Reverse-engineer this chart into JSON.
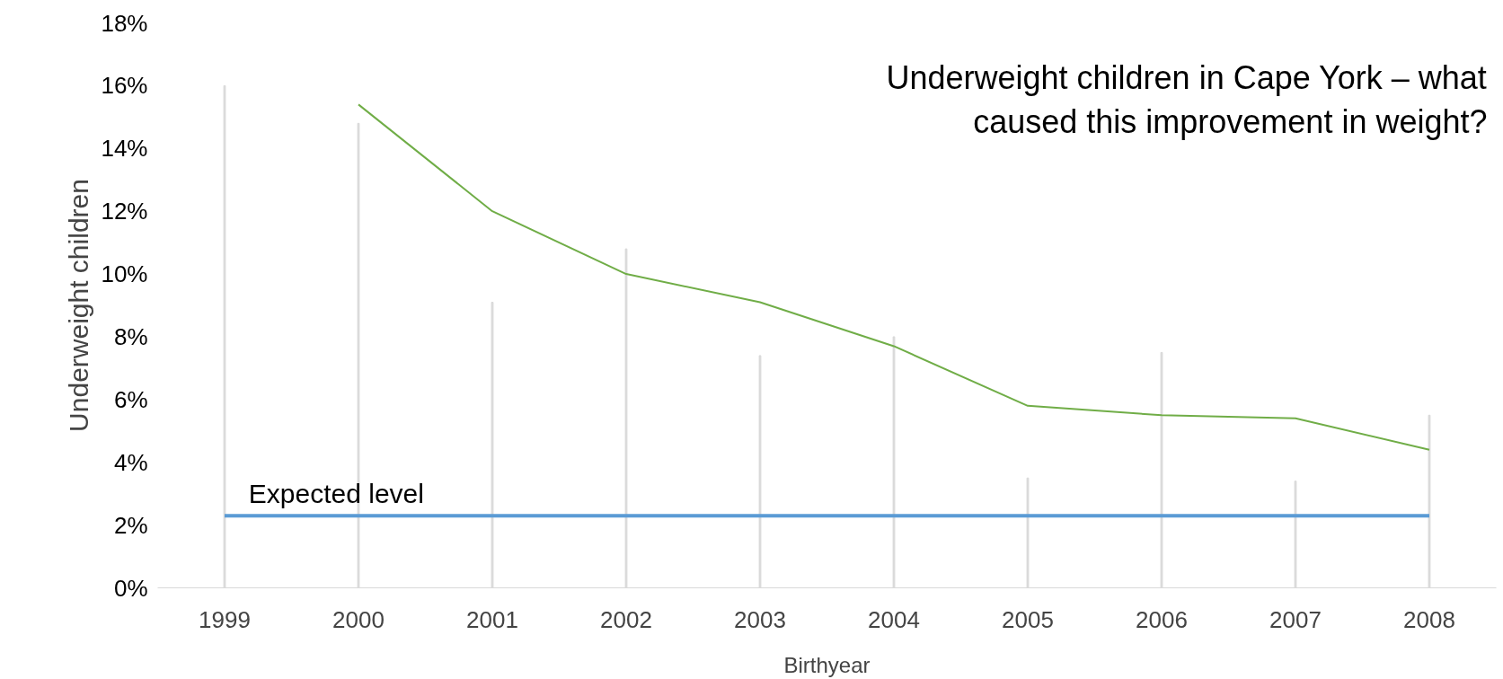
{
  "chart_data": {
    "type": "line",
    "title": "Underweight children in Cape York – what caused this improvement in weight?",
    "xlabel": "Birthyear",
    "ylabel": "Underweight children",
    "categories": [
      "1999",
      "2000",
      "2001",
      "2002",
      "2003",
      "2004",
      "2005",
      "2006",
      "2007",
      "2008"
    ],
    "series": [
      {
        "type": "bar",
        "color": "#d9d9d9",
        "values": [
          16.0,
          14.8,
          9.1,
          10.8,
          7.4,
          8.0,
          3.5,
          7.5,
          3.4,
          5.5
        ]
      },
      {
        "color": "#70ad47",
        "values": [
          null,
          15.4,
          12.0,
          10.0,
          9.1,
          7.7,
          5.8,
          5.5,
          5.4,
          4.4
        ]
      }
    ],
    "ref_lines": [
      {
        "axis": "y",
        "value": 2.3,
        "label": "Expected level",
        "color": "#5b9bd5"
      }
    ],
    "ylim": [
      0,
      18
    ],
    "yticks": [
      {
        "value": 0,
        "label": "0%"
      },
      {
        "value": 2,
        "label": "2%"
      },
      {
        "value": 4,
        "label": "4%"
      },
      {
        "value": 6,
        "label": "6%"
      },
      {
        "value": 8,
        "label": "8%"
      },
      {
        "value": 10,
        "label": "10%"
      },
      {
        "value": 12,
        "label": "12%"
      },
      {
        "value": 14,
        "label": "14%"
      },
      {
        "value": 16,
        "label": "16%"
      },
      {
        "value": 18,
        "label": "18%"
      }
    ],
    "grid": false,
    "line_style": "solid",
    "marker": "none"
  }
}
